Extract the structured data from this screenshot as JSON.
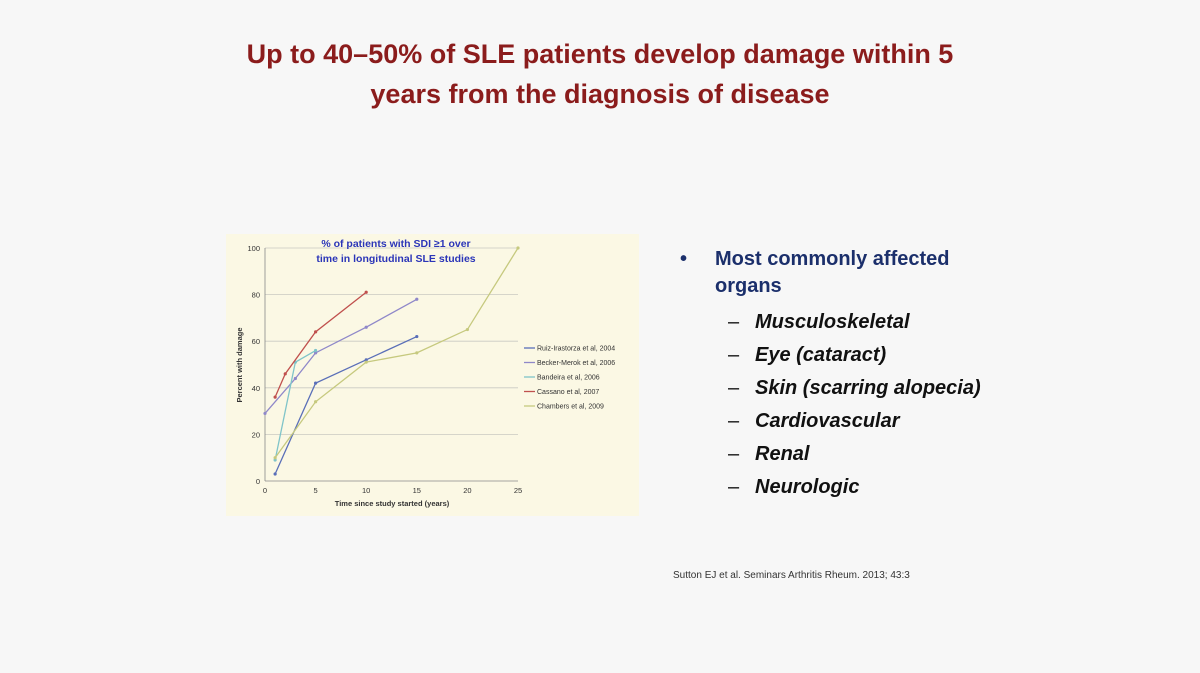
{
  "slide": {
    "title_line1": "Up to 40–50% of SLE patients develop damage within 5",
    "title_line2": "years from the diagnosis of disease",
    "title_color": "#8b1c1c"
  },
  "bullets": {
    "main": "Most commonly affected organs",
    "main_marker": "•",
    "sub_marker": "–",
    "items": [
      "Musculoskeletal",
      "Eye (cataract)",
      "Skin (scarring alopecia)",
      "Cardiovascular",
      "Renal",
      "Neurologic"
    ],
    "main_color": "#1b2f6b"
  },
  "citation": "Sutton EJ et al. Seminars Arthritis Rheum. 2013; 43:3",
  "chart_data": {
    "type": "line",
    "title_line1": "% of patients with SDI ≥1 over",
    "title_line2": "time in longitudinal SLE studies",
    "xlabel": "Time since study started (years)",
    "ylabel": "Percent with damage",
    "xlim": [
      0,
      25
    ],
    "ylim": [
      0,
      100
    ],
    "xticks": [
      0,
      5,
      10,
      15,
      20,
      25
    ],
    "yticks": [
      0,
      20,
      40,
      60,
      80,
      100
    ],
    "grid": "horizontal",
    "legend_position": "right",
    "series": [
      {
        "name": "Ruiz-Irastorza et al, 2004",
        "color": "#5a6fb8",
        "points": [
          [
            1,
            3
          ],
          [
            5,
            42
          ],
          [
            10,
            52
          ],
          [
            15,
            62
          ]
        ]
      },
      {
        "name": "Becker-Merok et al, 2006",
        "color": "#8f88c9",
        "points": [
          [
            0,
            29
          ],
          [
            3,
            44
          ],
          [
            5,
            55
          ],
          [
            10,
            66
          ],
          [
            15,
            78
          ]
        ]
      },
      {
        "name": "Bandeira et al, 2006",
        "color": "#7fc4c9",
        "points": [
          [
            1,
            9
          ],
          [
            3,
            51
          ],
          [
            5,
            56
          ]
        ]
      },
      {
        "name": "Cassano et al, 2007",
        "color": "#c0504d",
        "points": [
          [
            1,
            36
          ],
          [
            2,
            46
          ],
          [
            5,
            64
          ],
          [
            10,
            81
          ]
        ]
      },
      {
        "name": "Chambers et al, 2009",
        "color": "#c6c97e",
        "points": [
          [
            1,
            10
          ],
          [
            5,
            34
          ],
          [
            10,
            51
          ],
          [
            15,
            55
          ],
          [
            20,
            65
          ],
          [
            25,
            100
          ]
        ]
      }
    ]
  }
}
